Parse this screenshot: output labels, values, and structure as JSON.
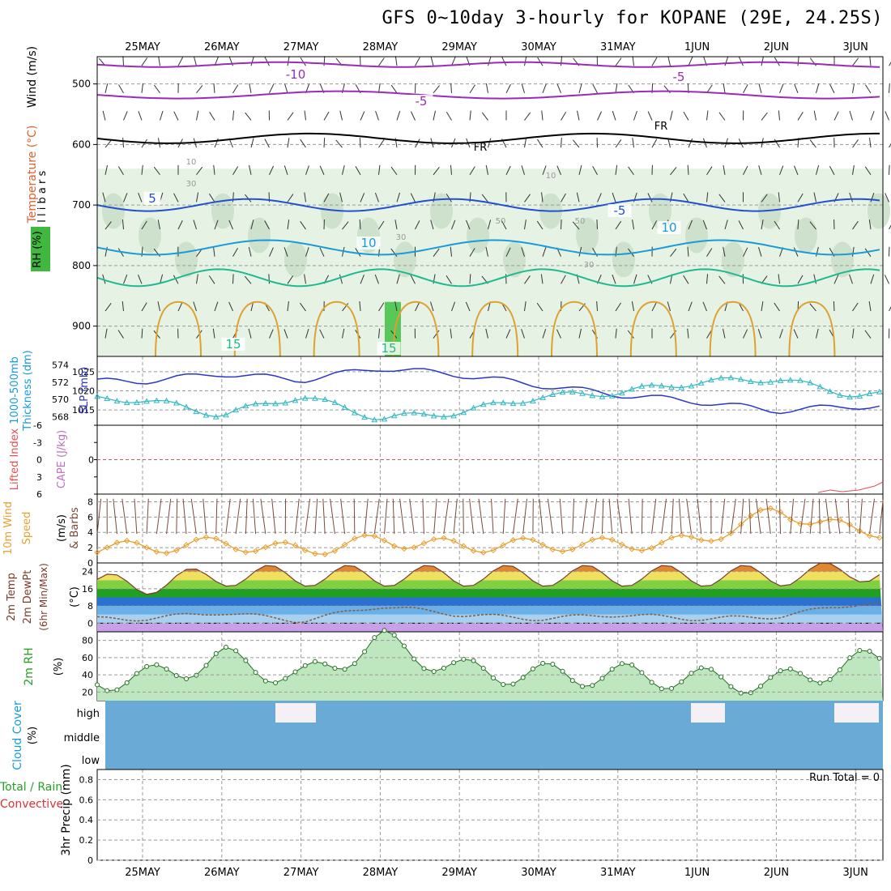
{
  "title": "GFS 0~10day 3-hourly for KOPANE (29E, 24.25S)",
  "days": [
    "25MAY",
    "26MAY",
    "27MAY",
    "28MAY",
    "29MAY",
    "30MAY",
    "31MAY",
    "1JUN",
    "2JUN",
    "3JUN"
  ],
  "panels": {
    "upper": {
      "left_labels": [
        "Wind (m/s)",
        "Temperature (°C)",
        "RH (%)"
      ],
      "unit_label": "m i l l i b a r s",
      "pressure_ticks": [
        "500",
        "600",
        "700",
        "800",
        "900"
      ],
      "isotherm_labels": [
        "-10",
        "-5",
        "-5",
        "5",
        "-5",
        "10",
        "10",
        "15",
        "15"
      ],
      "rh_labels": [
        "10",
        "30",
        "50",
        "50",
        "10",
        "30",
        "30"
      ],
      "freezing_label": "FR"
    },
    "slp": {
      "left_label_1": "Thickness (dm)",
      "left_label_2": "1000-500mb",
      "right_label": "SLP (mb)",
      "thickness_ticks": [
        "574",
        "572",
        "570",
        "568"
      ],
      "slp_ticks": [
        "1025",
        "1020",
        "1015"
      ]
    },
    "cape": {
      "label_1": "Lifted Index",
      "label_2": "CAPE (J/kg)",
      "ticks": [
        "-6",
        "-3",
        "0",
        "3",
        "6"
      ]
    },
    "wind10": {
      "label_1": "10m Wind",
      "label_2": "Speed",
      "label_3": "(m/s)",
      "label_4": "& Barbs",
      "ticks": [
        "8",
        "6",
        "4",
        "2",
        "0"
      ]
    },
    "temp2m": {
      "label_1": "2m Temp",
      "label_2": "2m DewPt",
      "label_3": "(6hr Min/Max)",
      "unit": "(°C)",
      "ticks": [
        "24",
        "16",
        "8",
        "0"
      ]
    },
    "rh2m": {
      "label_1": "2m RH",
      "unit": "(%)",
      "ticks": [
        "80",
        "60",
        "40",
        "20"
      ]
    },
    "cloud": {
      "label_1": "Cloud Cover",
      "unit": "(%)",
      "levels": [
        "high",
        "middle",
        "low"
      ]
    },
    "precip": {
      "label_1": "Total / Rain",
      "label_2": "Convective",
      "label_3": "3hr Precip (mm)",
      "ticks": [
        "0.8",
        "0.6",
        "0.4",
        "0.2",
        "0"
      ],
      "run_total": "Run Total = 0"
    }
  },
  "colors": {
    "slp_line": "#2a36c8",
    "thickness_line": "#30b8c0",
    "wind_speed_line": "#e8a030",
    "dewpoint_line": "#8a5a3a",
    "rh_fill": "#28c828",
    "cloud_fill": "#6aaad6",
    "isotherm_neg10": "#9a2ab8",
    "isotherm_5": "#2050d0",
    "isotherm_10": "#1a9ad8",
    "isotherm_15": "#20b890",
    "isotherm_20": "#e0a030",
    "freezing": "#000000"
  },
  "chart_data": {
    "type": "line",
    "x": [
      "25MAY",
      "26MAY",
      "27MAY",
      "28MAY",
      "29MAY",
      "30MAY",
      "31MAY",
      "1JUN",
      "2JUN",
      "3JUN"
    ],
    "series": [
      {
        "name": "SLP (mb)",
        "values": [
          1022.5,
          1024.5,
          1022.8,
          1026.0,
          1024.2,
          1021.5,
          1019.0,
          1017.2,
          1014.8,
          1016.0
        ]
      },
      {
        "name": "Thickness (dm)",
        "values": [
          570.0,
          568.2,
          570.4,
          567.8,
          568.5,
          570.3,
          570.8,
          572.0,
          572.4,
          570.5
        ]
      },
      {
        "name": "10m Wind Speed (m/s)",
        "values": [
          2.0,
          2.6,
          1.6,
          3.0,
          2.2,
          2.4,
          2.4,
          2.8,
          6.8,
          4.2
        ]
      },
      {
        "name": "2m Temp (°C)",
        "values": [
          18,
          22,
          22,
          22,
          22,
          22,
          22,
          22,
          22,
          24
        ]
      },
      {
        "name": "2m DewPt (°C)",
        "values": [
          2,
          5,
          1,
          8,
          4,
          2,
          4,
          2,
          3,
          9
        ]
      },
      {
        "name": "2m RH (%)",
        "values": [
          35,
          60,
          35,
          80,
          45,
          40,
          40,
          35,
          30,
          55
        ]
      },
      {
        "name": "3hr Precip (mm)",
        "values": [
          0,
          0,
          0,
          0,
          0,
          0,
          0,
          0,
          0,
          0
        ]
      }
    ]
  }
}
